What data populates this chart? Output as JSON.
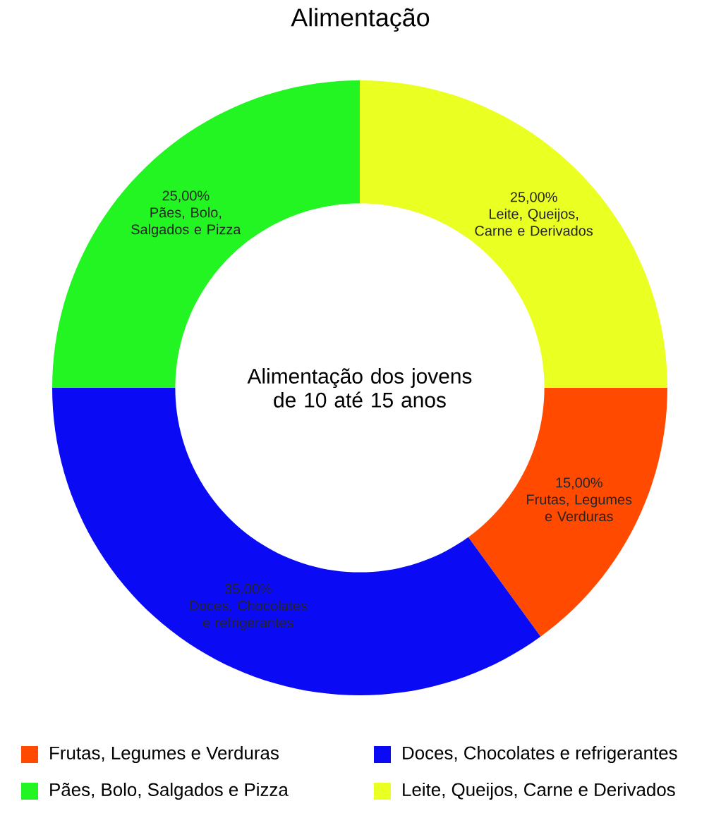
{
  "chart_data": {
    "type": "donut",
    "title": "Alimentação",
    "categories": [
      "Frutas, Legumes e Verduras",
      "Doces, Chocolates e refrigerantes",
      "Pães, Bolo, Salgados e Pizza",
      "Leite, Queijos, Carne e Derivados"
    ],
    "values": [
      15,
      35,
      25,
      25
    ],
    "colors": [
      "#ff4a00",
      "#0a0af5",
      "#22f522",
      "#eaff22"
    ],
    "value_labels": [
      "15,00%",
      "35,00%",
      "25,00%",
      "25,00%"
    ],
    "annotations": [
      "Alimentação dos jovens de 10 até 15 anos"
    ],
    "legend": "bottom"
  }
}
